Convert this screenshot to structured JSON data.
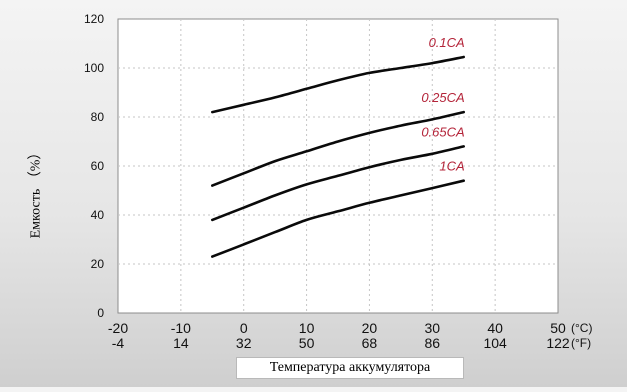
{
  "chart_data": {
    "type": "line",
    "title": "",
    "xlabel": "Температура аккумулятора",
    "ylabel": "Емкость （%）",
    "x_unit_c": "(°C)",
    "x_unit_f": "(°F)",
    "xlim": [
      -20,
      50
    ],
    "ylim": [
      0,
      120
    ],
    "y_ticks": [
      0,
      20,
      40,
      60,
      80,
      100,
      120
    ],
    "x_ticks_c": [
      -20,
      -10,
      0,
      10,
      20,
      30,
      40,
      50
    ],
    "x_ticks_f": [
      -4,
      14,
      32,
      50,
      68,
      86,
      104,
      122
    ],
    "grid": true,
    "series_label_color": "#b4253a",
    "series": [
      {
        "name": "0.1CA",
        "x": [
          -5,
          0,
          5,
          10,
          15,
          20,
          25,
          30,
          35
        ],
        "y": [
          82,
          85,
          88,
          91.5,
          95,
          98,
          100,
          102,
          104.5
        ]
      },
      {
        "name": "0.25CA",
        "x": [
          -5,
          0,
          5,
          10,
          15,
          20,
          25,
          30,
          35
        ],
        "y": [
          52,
          57,
          62,
          66,
          70,
          73.5,
          76.5,
          79,
          82
        ]
      },
      {
        "name": "0.65CA",
        "x": [
          -5,
          0,
          5,
          10,
          15,
          20,
          25,
          30,
          35
        ],
        "y": [
          38,
          43,
          48,
          52.5,
          56,
          59.5,
          62.5,
          65,
          68
        ]
      },
      {
        "name": "1CA",
        "x": [
          -5,
          0,
          5,
          10,
          15,
          20,
          25,
          30,
          35
        ],
        "y": [
          23,
          28,
          33,
          38,
          41.5,
          45,
          48,
          51,
          54
        ]
      }
    ]
  }
}
